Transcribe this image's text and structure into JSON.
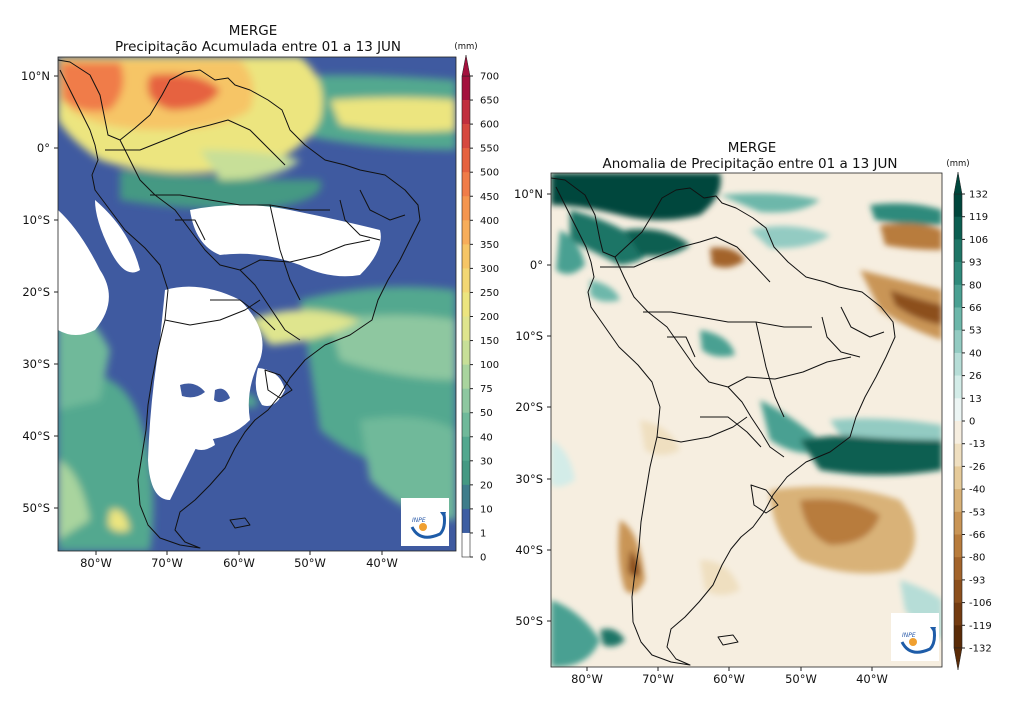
{
  "left_map": {
    "title": "MERGE",
    "subtitle": "Precipitação Acumulada entre 01 a  13 JUN",
    "unit": "(mm)",
    "lat_ticks": [
      "10°N",
      "0°",
      "10°S",
      "20°S",
      "30°S",
      "40°S",
      "50°S"
    ],
    "lon_ticks": [
      "80°W",
      "70°W",
      "60°W",
      "50°W",
      "40°W"
    ],
    "colorbar_ticks": [
      "700",
      "650",
      "600",
      "550",
      "500",
      "450",
      "400",
      "350",
      "300",
      "250",
      "200",
      "150",
      "100",
      "75",
      "50",
      "40",
      "30",
      "20",
      "10",
      "1",
      "0"
    ],
    "colorbar_colors": [
      "#a3103d",
      "#c12f3e",
      "#d6483f",
      "#e6623f",
      "#f07c49",
      "#f5954f",
      "#f7ad5a",
      "#f6c566",
      "#f3d774",
      "#ece57f",
      "#dfe58e",
      "#c7df98",
      "#a9d49e",
      "#8ec7a0",
      "#6fb99a",
      "#52a88f",
      "#449983",
      "#3e7d8b",
      "#3d5ea2",
      "#ffffff"
    ],
    "logo": "INPE"
  },
  "right_map": {
    "title": "MERGE",
    "subtitle": "Anomalia de Precipitação entre 01 a 13 JUN",
    "unit": "(mm)",
    "lat_ticks": [
      "10°N",
      "0°",
      "10°S",
      "20°S",
      "30°S",
      "40°S",
      "50°S"
    ],
    "lon_ticks": [
      "80°W",
      "70°W",
      "60°W",
      "50°W",
      "40°W"
    ],
    "colorbar_ticks": [
      "132",
      "119",
      "106",
      "93",
      "80",
      "66",
      "53",
      "40",
      "26",
      "13",
      "0",
      "-13",
      "-26",
      "-40",
      "-53",
      "-66",
      "-80",
      "-93",
      "-106",
      "-119",
      "-132"
    ],
    "colorbar_colors": [
      "#00463c",
      "#0b5e51",
      "#1f7566",
      "#2f8a7b",
      "#4aa092",
      "#6db7aa",
      "#93cbc2",
      "#b6ddd7",
      "#d3ece8",
      "#ecf5f4",
      "#f6eee0",
      "#efdfc0",
      "#e6cb9a",
      "#d9b278",
      "#c99556",
      "#b87c3c",
      "#a3642b",
      "#8c4f1c",
      "#733b10",
      "#5a2b07"
    ],
    "logo": "INPE"
  }
}
